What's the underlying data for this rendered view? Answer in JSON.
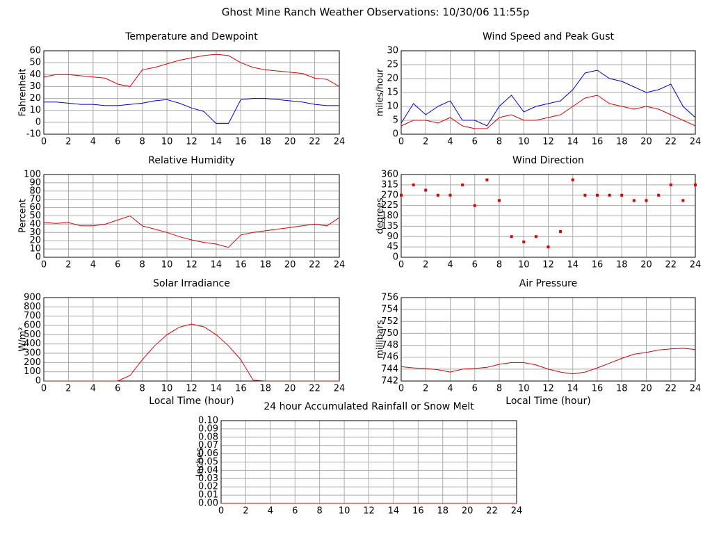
{
  "title": "Ghost Mine Ranch Weather Observations: 10/30/06 11:55p",
  "chart_data": [
    {
      "type": "line",
      "title": "Temperature and Dewpoint",
      "ylabel": "Fahrenheit",
      "x": [
        0,
        1,
        2,
        3,
        4,
        5,
        6,
        7,
        8,
        9,
        10,
        11,
        12,
        13,
        14,
        15,
        16,
        17,
        18,
        19,
        20,
        21,
        22,
        23,
        24
      ],
      "xlim": [
        0,
        24
      ],
      "xticks": [
        0,
        2,
        4,
        6,
        8,
        10,
        12,
        14,
        16,
        18,
        20,
        22,
        24
      ],
      "ylim": [
        -10,
        60
      ],
      "yticks": [
        -10,
        0,
        10,
        20,
        30,
        40,
        50,
        60
      ],
      "grid": true,
      "series": [
        {
          "name": "Temperature",
          "color": "#dd0000",
          "values": [
            38,
            40,
            40,
            39,
            38,
            37,
            32,
            30,
            44,
            46,
            49,
            52,
            54,
            56,
            57,
            56,
            50,
            46,
            44,
            43,
            42,
            41,
            37,
            36,
            30
          ]
        },
        {
          "name": "Dewpoint",
          "color": "#0000cc",
          "values": [
            17,
            17,
            16,
            15,
            15,
            14,
            14,
            15,
            16,
            18,
            19,
            16,
            12,
            9,
            -1,
            -1,
            19,
            20,
            20,
            19,
            18,
            17,
            15,
            14,
            14
          ]
        }
      ]
    },
    {
      "type": "line",
      "title": "Wind Speed and Peak Gust",
      "ylabel": "miles/hour",
      "x": [
        0,
        1,
        2,
        3,
        4,
        5,
        6,
        7,
        8,
        9,
        10,
        11,
        12,
        13,
        14,
        15,
        16,
        17,
        18,
        19,
        20,
        21,
        22,
        23,
        24
      ],
      "xlim": [
        0,
        24
      ],
      "xticks": [
        0,
        2,
        4,
        6,
        8,
        10,
        12,
        14,
        16,
        18,
        20,
        22,
        24
      ],
      "ylim": [
        0,
        30
      ],
      "yticks": [
        0,
        5,
        10,
        15,
        20,
        25,
        30
      ],
      "grid": true,
      "series": [
        {
          "name": "Peak Gust",
          "color": "#0000cc",
          "values": [
            4,
            11,
            7,
            10,
            12,
            5,
            5,
            3,
            10,
            14,
            8,
            10,
            11,
            12,
            16,
            22,
            23,
            20,
            19,
            17,
            15,
            16,
            18,
            10,
            6
          ]
        },
        {
          "name": "Wind Speed",
          "color": "#dd0000",
          "values": [
            3,
            5,
            5,
            4,
            6,
            3,
            2,
            2,
            6,
            7,
            5,
            5,
            6,
            7,
            10,
            13,
            14,
            11,
            10,
            9,
            10,
            9,
            7,
            5,
            3
          ]
        }
      ]
    },
    {
      "type": "line",
      "title": "Relative Humidity",
      "ylabel": "Percent",
      "x": [
        0,
        1,
        2,
        3,
        4,
        5,
        6,
        7,
        8,
        9,
        10,
        11,
        12,
        13,
        14,
        15,
        16,
        17,
        18,
        19,
        20,
        21,
        22,
        23,
        24
      ],
      "xlim": [
        0,
        24
      ],
      "xticks": [
        0,
        2,
        4,
        6,
        8,
        10,
        12,
        14,
        16,
        18,
        20,
        22,
        24
      ],
      "ylim": [
        0,
        100
      ],
      "yticks": [
        0,
        10,
        20,
        30,
        40,
        50,
        60,
        70,
        80,
        90,
        100
      ],
      "grid": true,
      "series": [
        {
          "name": "Relative Humidity",
          "color": "#dd0000",
          "values": [
            42,
            41,
            42,
            38,
            38,
            40,
            45,
            50,
            38,
            34,
            30,
            25,
            21,
            18,
            16,
            12,
            27,
            30,
            32,
            34,
            36,
            38,
            40,
            38,
            48
          ]
        }
      ]
    },
    {
      "type": "scatter",
      "title": "Wind Direction",
      "ylabel": "degrees",
      "x": [
        0,
        1,
        2,
        3,
        4,
        5,
        6,
        7,
        8,
        9,
        10,
        11,
        12,
        13,
        14,
        15,
        16,
        17,
        18,
        19,
        20,
        21,
        22,
        23,
        24
      ],
      "xlim": [
        0,
        24
      ],
      "xticks": [
        0,
        2,
        4,
        6,
        8,
        10,
        12,
        14,
        16,
        18,
        20,
        22,
        24
      ],
      "ylim": [
        0,
        360
      ],
      "yticks": [
        0,
        45,
        90,
        135,
        180,
        225,
        270,
        315,
        360
      ],
      "grid": true,
      "series": [
        {
          "name": "Wind Direction",
          "color": "#dd0000",
          "values": [
            270,
            315,
            292,
            270,
            270,
            315,
            225,
            337,
            247,
            90,
            67,
            90,
            45,
            112,
            337,
            270,
            270,
            270,
            270,
            247,
            247,
            270,
            315,
            247,
            315
          ]
        }
      ]
    },
    {
      "type": "line",
      "title": "Solar Irradiance",
      "ylabel": "W/m²",
      "xlabel": "Local Time (hour)",
      "x": [
        0,
        1,
        2,
        3,
        4,
        5,
        6,
        7,
        8,
        9,
        10,
        11,
        12,
        13,
        14,
        15,
        16,
        17,
        18,
        19,
        20,
        21,
        22,
        23,
        24
      ],
      "xlim": [
        0,
        24
      ],
      "xticks": [
        0,
        2,
        4,
        6,
        8,
        10,
        12,
        14,
        16,
        18,
        20,
        22,
        24
      ],
      "ylim": [
        0,
        900
      ],
      "yticks": [
        0,
        100,
        200,
        300,
        400,
        500,
        600,
        700,
        800,
        900
      ],
      "grid": true,
      "series": [
        {
          "name": "Solar Irradiance",
          "color": "#dd0000",
          "values": [
            0,
            0,
            0,
            0,
            0,
            0,
            0,
            60,
            230,
            380,
            500,
            580,
            615,
            585,
            500,
            380,
            230,
            10,
            0,
            0,
            0,
            0,
            0,
            0,
            0
          ]
        }
      ]
    },
    {
      "type": "line",
      "title": "Air Pressure",
      "ylabel": "millibars",
      "xlabel": "Local Time (hour)",
      "x": [
        0,
        1,
        2,
        3,
        4,
        5,
        6,
        7,
        8,
        9,
        10,
        11,
        12,
        13,
        14,
        15,
        16,
        17,
        18,
        19,
        20,
        21,
        22,
        23,
        24
      ],
      "xlim": [
        0,
        24
      ],
      "xticks": [
        0,
        2,
        4,
        6,
        8,
        10,
        12,
        14,
        16,
        18,
        20,
        22,
        24
      ],
      "ylim": [
        742,
        756
      ],
      "yticks": [
        742,
        744,
        746,
        748,
        750,
        752,
        754,
        756
      ],
      "grid": true,
      "series": [
        {
          "name": "Air Pressure",
          "color": "#dd0000",
          "values": [
            744.4,
            744.2,
            744.1,
            743.9,
            743.5,
            744.0,
            744.1,
            744.3,
            744.8,
            745.1,
            745.1,
            744.7,
            744.0,
            743.5,
            743.2,
            743.5,
            744.2,
            745.0,
            745.8,
            746.5,
            746.8,
            747.2,
            747.4,
            747.5,
            747.3
          ]
        }
      ]
    },
    {
      "type": "line",
      "title": "24 hour Accumulated Rainfall or Snow Melt",
      "ylabel": "Inches",
      "x": [
        0,
        1,
        2,
        3,
        4,
        5,
        6,
        7,
        8,
        9,
        10,
        11,
        12,
        13,
        14,
        15,
        16,
        17,
        18,
        19,
        20,
        21,
        22,
        23,
        24
      ],
      "xlim": [
        0,
        24
      ],
      "xticks": [
        0,
        2,
        4,
        6,
        8,
        10,
        12,
        14,
        16,
        18,
        20,
        22,
        24
      ],
      "ylim": [
        0,
        0.1
      ],
      "yticks": [
        {
          "value": 0,
          "label": "0.00"
        },
        {
          "value": 0.01,
          "label": "0.01"
        },
        {
          "value": 0.02,
          "label": "0.02"
        },
        {
          "value": 0.03,
          "label": "0.03"
        },
        {
          "value": 0.04,
          "label": "0.04"
        },
        {
          "value": 0.05,
          "label": "0.05"
        },
        {
          "value": 0.06,
          "label": "0.06"
        },
        {
          "value": 0.07,
          "label": "0.07"
        },
        {
          "value": 0.08,
          "label": "0.08"
        },
        {
          "value": 0.09,
          "label": "0.09"
        },
        {
          "value": 0.1,
          "label": "0.10"
        }
      ],
      "grid": true,
      "series": [
        {
          "name": "Rainfall",
          "color": "#dd0000",
          "values": [
            0,
            0,
            0,
            0,
            0,
            0,
            0,
            0,
            0,
            0,
            0,
            0,
            0,
            0,
            0,
            0,
            0,
            0,
            0,
            0,
            0,
            0,
            0,
            0,
            0
          ]
        }
      ]
    }
  ]
}
